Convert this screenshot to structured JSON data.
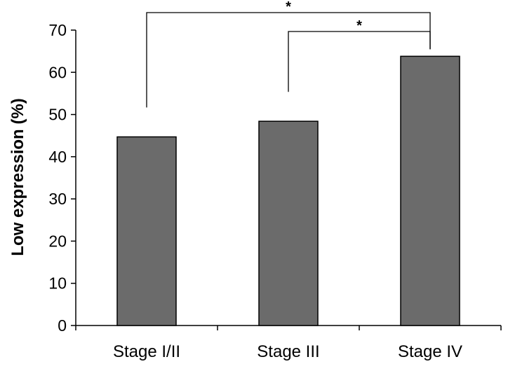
{
  "chart_data": {
    "type": "bar",
    "categories": [
      "Stage I/II",
      "Stage III",
      "Stage IV"
    ],
    "values": [
      44.7,
      48.4,
      63.8
    ],
    "ylabel": "Low expression (%)",
    "xlabel": "",
    "ylim": [
      0,
      70
    ],
    "yticks": [
      0,
      10,
      20,
      30,
      40,
      50,
      60,
      70
    ],
    "bar_color": "#6b6b6b",
    "grid": false,
    "significance": [
      {
        "from": "Stage I/II",
        "to": "Stage IV",
        "label": "*"
      },
      {
        "from": "Stage III",
        "to": "Stage IV",
        "label": "*"
      }
    ]
  }
}
